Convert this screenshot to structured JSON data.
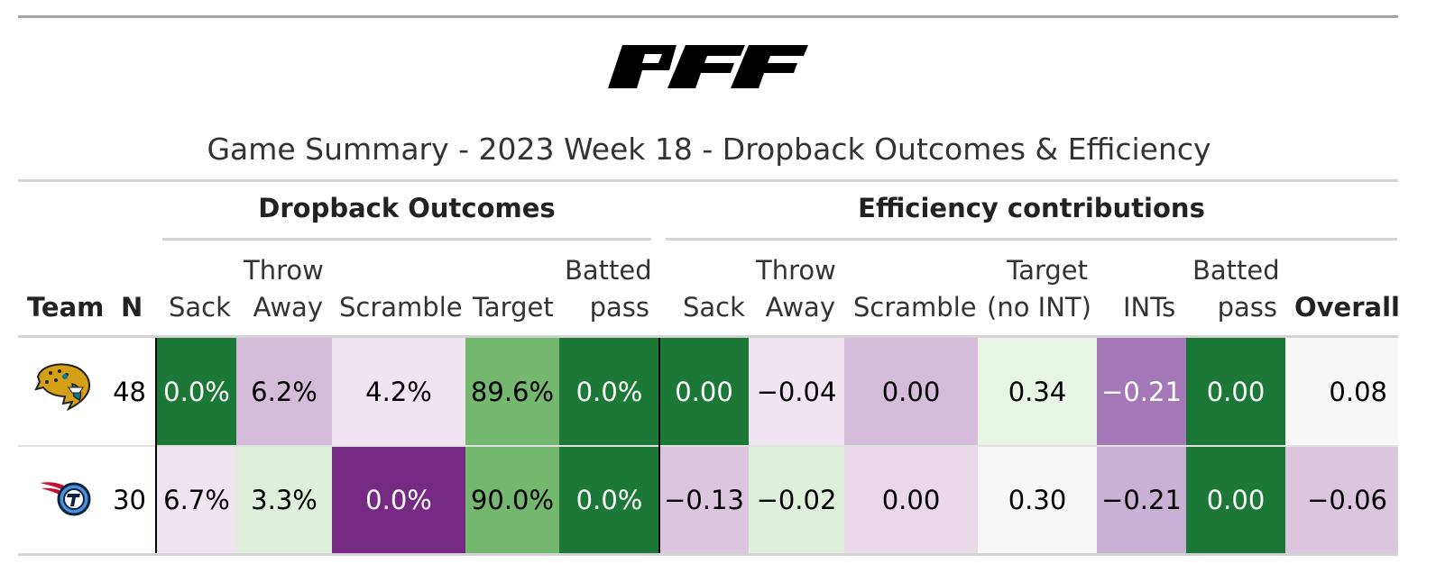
{
  "brand": {
    "logo_text": "PFF"
  },
  "title": "Game Summary - 2023 Week 18 - Dropback Outcomes & Efficiency",
  "spanners": {
    "outcomes": "Dropback Outcomes",
    "efficiency": "Efficiency contributions"
  },
  "columns": {
    "team": "Team",
    "n": "N",
    "o_sack": "Sack",
    "o_throw_away": "Throw\nAway",
    "o_scramble": "Scramble",
    "o_target": "Target",
    "o_batted": "Batted\npass",
    "e_sack": "Sack",
    "e_throw_away": "Throw\nAway",
    "e_scramble": "Scramble",
    "e_target": "Target\n(no INT)",
    "e_ints": "INTs",
    "e_batted": "Batted\npass",
    "e_overall": "Overall"
  },
  "rows": [
    {
      "team_icon": "jaguars-logo",
      "n": "48",
      "o_sack": "0.0%",
      "o_throw_away": "6.2%",
      "o_scramble": "4.2%",
      "o_target": "89.6%",
      "o_batted": "0.0%",
      "e_sack": "0.00",
      "e_throw_away": "−0.04",
      "e_scramble": "0.00",
      "e_target": "0.34",
      "e_ints": "−0.21",
      "e_batted": "0.00",
      "e_overall": "0.08"
    },
    {
      "team_icon": "titans-logo",
      "n": "30",
      "o_sack": "6.7%",
      "o_throw_away": "3.3%",
      "o_scramble": "0.0%",
      "o_target": "90.0%",
      "o_batted": "0.0%",
      "e_sack": "−0.13",
      "e_throw_away": "−0.02",
      "e_scramble": "0.00",
      "e_target": "0.30",
      "e_ints": "−0.21",
      "e_batted": "0.00",
      "e_overall": "−0.06"
    }
  ],
  "colors": {
    "dark_green": "#1b7837",
    "mid_green": "#74b870",
    "light_green": "#dff0da",
    "neutral": "#f7f7f7",
    "light_purple": "#efe5f0",
    "lavender": "#e8d8e8",
    "soft_purple": "#d6bcdb",
    "mid_purple": "#a478b6",
    "dark_purple": "#762a83"
  }
}
